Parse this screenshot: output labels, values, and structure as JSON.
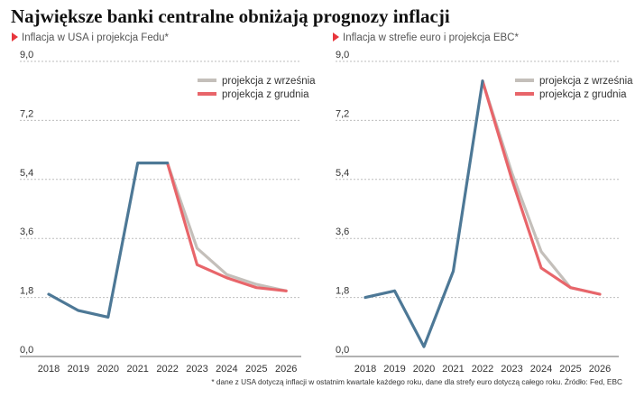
{
  "title": "Największe banki centralne obniżają prognozy inflacji",
  "footnote": "* dane z USA dotyczą inflacji w ostatnim kwartale każdego roku, dane dla strefy euro dotyczą całego roku. Źródło: Fed, EBC",
  "colors": {
    "actual": "#4d7896",
    "september": "#c4bfba",
    "december": "#e8656a",
    "accent": "#e8363c",
    "grid": "#bdbdbd"
  },
  "chart_data": [
    {
      "type": "line",
      "subtitle": "Inflacja w USA i projekcja Fedu*",
      "categories": [
        "2018",
        "2019",
        "2020",
        "2021",
        "2022",
        "2023",
        "2024",
        "2025",
        "2026"
      ],
      "yticks": [
        "0,0",
        "1,8",
        "3,6",
        "5,4",
        "7,2",
        "9,0"
      ],
      "ylim": [
        0,
        9
      ],
      "legend_position": "top-right",
      "series": [
        {
          "key": "actual",
          "values": [
            1.9,
            1.4,
            1.2,
            5.9,
            5.9,
            null,
            null,
            null,
            null
          ]
        },
        {
          "name": "projekcja z września",
          "key": "september",
          "values": [
            null,
            null,
            null,
            null,
            5.9,
            3.3,
            2.5,
            2.2,
            2.0
          ]
        },
        {
          "name": "projekcja z grudnia",
          "key": "december",
          "values": [
            null,
            null,
            null,
            null,
            5.9,
            2.8,
            2.4,
            2.1,
            2.0
          ]
        }
      ]
    },
    {
      "type": "line",
      "subtitle": "Inflacja w strefie euro i projekcja EBC*",
      "categories": [
        "2018",
        "2019",
        "2020",
        "2021",
        "2022",
        "2023",
        "2024",
        "2025",
        "2026"
      ],
      "yticks": [
        "0,0",
        "1,8",
        "3,6",
        "5,4",
        "7,2",
        "9,0"
      ],
      "ylim": [
        0,
        9
      ],
      "legend_position": "top-right",
      "series": [
        {
          "key": "actual",
          "values": [
            1.8,
            2.0,
            0.3,
            2.6,
            8.4,
            null,
            null,
            null,
            null
          ]
        },
        {
          "name": "projekcja z września",
          "key": "september",
          "values": [
            null,
            null,
            null,
            null,
            8.4,
            5.6,
            3.2,
            2.1,
            1.9
          ]
        },
        {
          "name": "projekcja z grudnia",
          "key": "december",
          "values": [
            null,
            null,
            null,
            null,
            8.4,
            5.4,
            2.7,
            2.1,
            1.9
          ]
        }
      ]
    }
  ]
}
